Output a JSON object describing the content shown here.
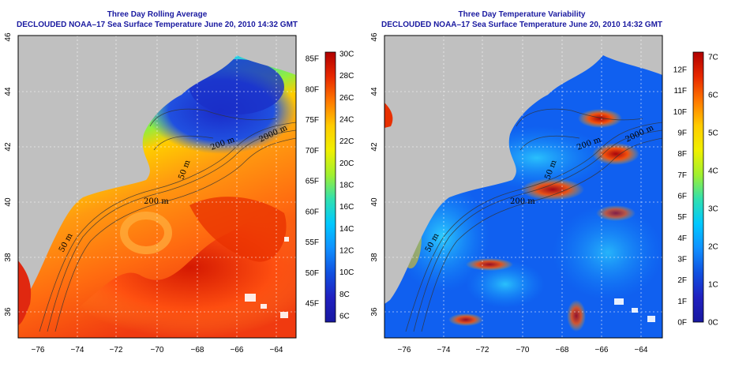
{
  "panels": [
    {
      "id": "left",
      "title": "Three Day Rolling Average",
      "subtitle": "DECLOUDED NOAA–17 Sea Surface Temperature June 20, 2010 14:32 GMT",
      "lat_ticks": [
        "46",
        "44",
        "42",
        "40",
        "38",
        "36"
      ],
      "lon_ticks": [
        "−76",
        "−74",
        "−72",
        "−70",
        "−68",
        "−66",
        "−64"
      ],
      "contour_labels": [
        "50 m",
        "200 m",
        "2000 m",
        "200 m",
        "50 m"
      ],
      "colorbar": {
        "left_labels": [
          "85F",
          "80F",
          "75F",
          "70F",
          "65F",
          "60F",
          "55F",
          "50F",
          "45F"
        ],
        "right_labels": [
          "30C",
          "28C",
          "26C",
          "24C",
          "22C",
          "20C",
          "18C",
          "16C",
          "14C",
          "12C",
          "10C",
          "8C",
          "6C"
        ],
        "colors": [
          "#b00000",
          "#e82800",
          "#ff7a00",
          "#ffcc00",
          "#f0f000",
          "#a0f030",
          "#30e0b0",
          "#00c8ff",
          "#1090ff",
          "#1050e0",
          "#2020c0",
          "#1818a0"
        ]
      }
    },
    {
      "id": "right",
      "title": "Three Day Temperature Variability",
      "subtitle": "DECLOUDED NOAA–17 Sea Surface Temperature June 20, 2010 14:32 GMT",
      "lat_ticks": [
        "46",
        "44",
        "42",
        "40",
        "38",
        "36"
      ],
      "lon_ticks": [
        "−76",
        "−74",
        "−72",
        "−70",
        "−68",
        "−66",
        "−64"
      ],
      "contour_labels": [
        "50 m",
        "200 m",
        "2000 m",
        "200 m",
        "50 m"
      ],
      "colorbar": {
        "left_labels": [
          "12F",
          "11F",
          "10F",
          "9F",
          "8F",
          "7F",
          "6F",
          "5F",
          "4F",
          "3F",
          "2F",
          "1F",
          "0F"
        ],
        "right_labels": [
          "7C",
          "6C",
          "5C",
          "4C",
          "3C",
          "2C",
          "1C",
          "0C"
        ],
        "colors": [
          "#b00000",
          "#e82800",
          "#ff7a00",
          "#ffcc00",
          "#f0f000",
          "#a0f030",
          "#30e0b0",
          "#00c8ff",
          "#1090ff",
          "#1050e0",
          "#2020c0",
          "#1818a0"
        ]
      }
    }
  ],
  "colors": {
    "land": "#c0c0c0",
    "title": "#1a1aa0"
  }
}
